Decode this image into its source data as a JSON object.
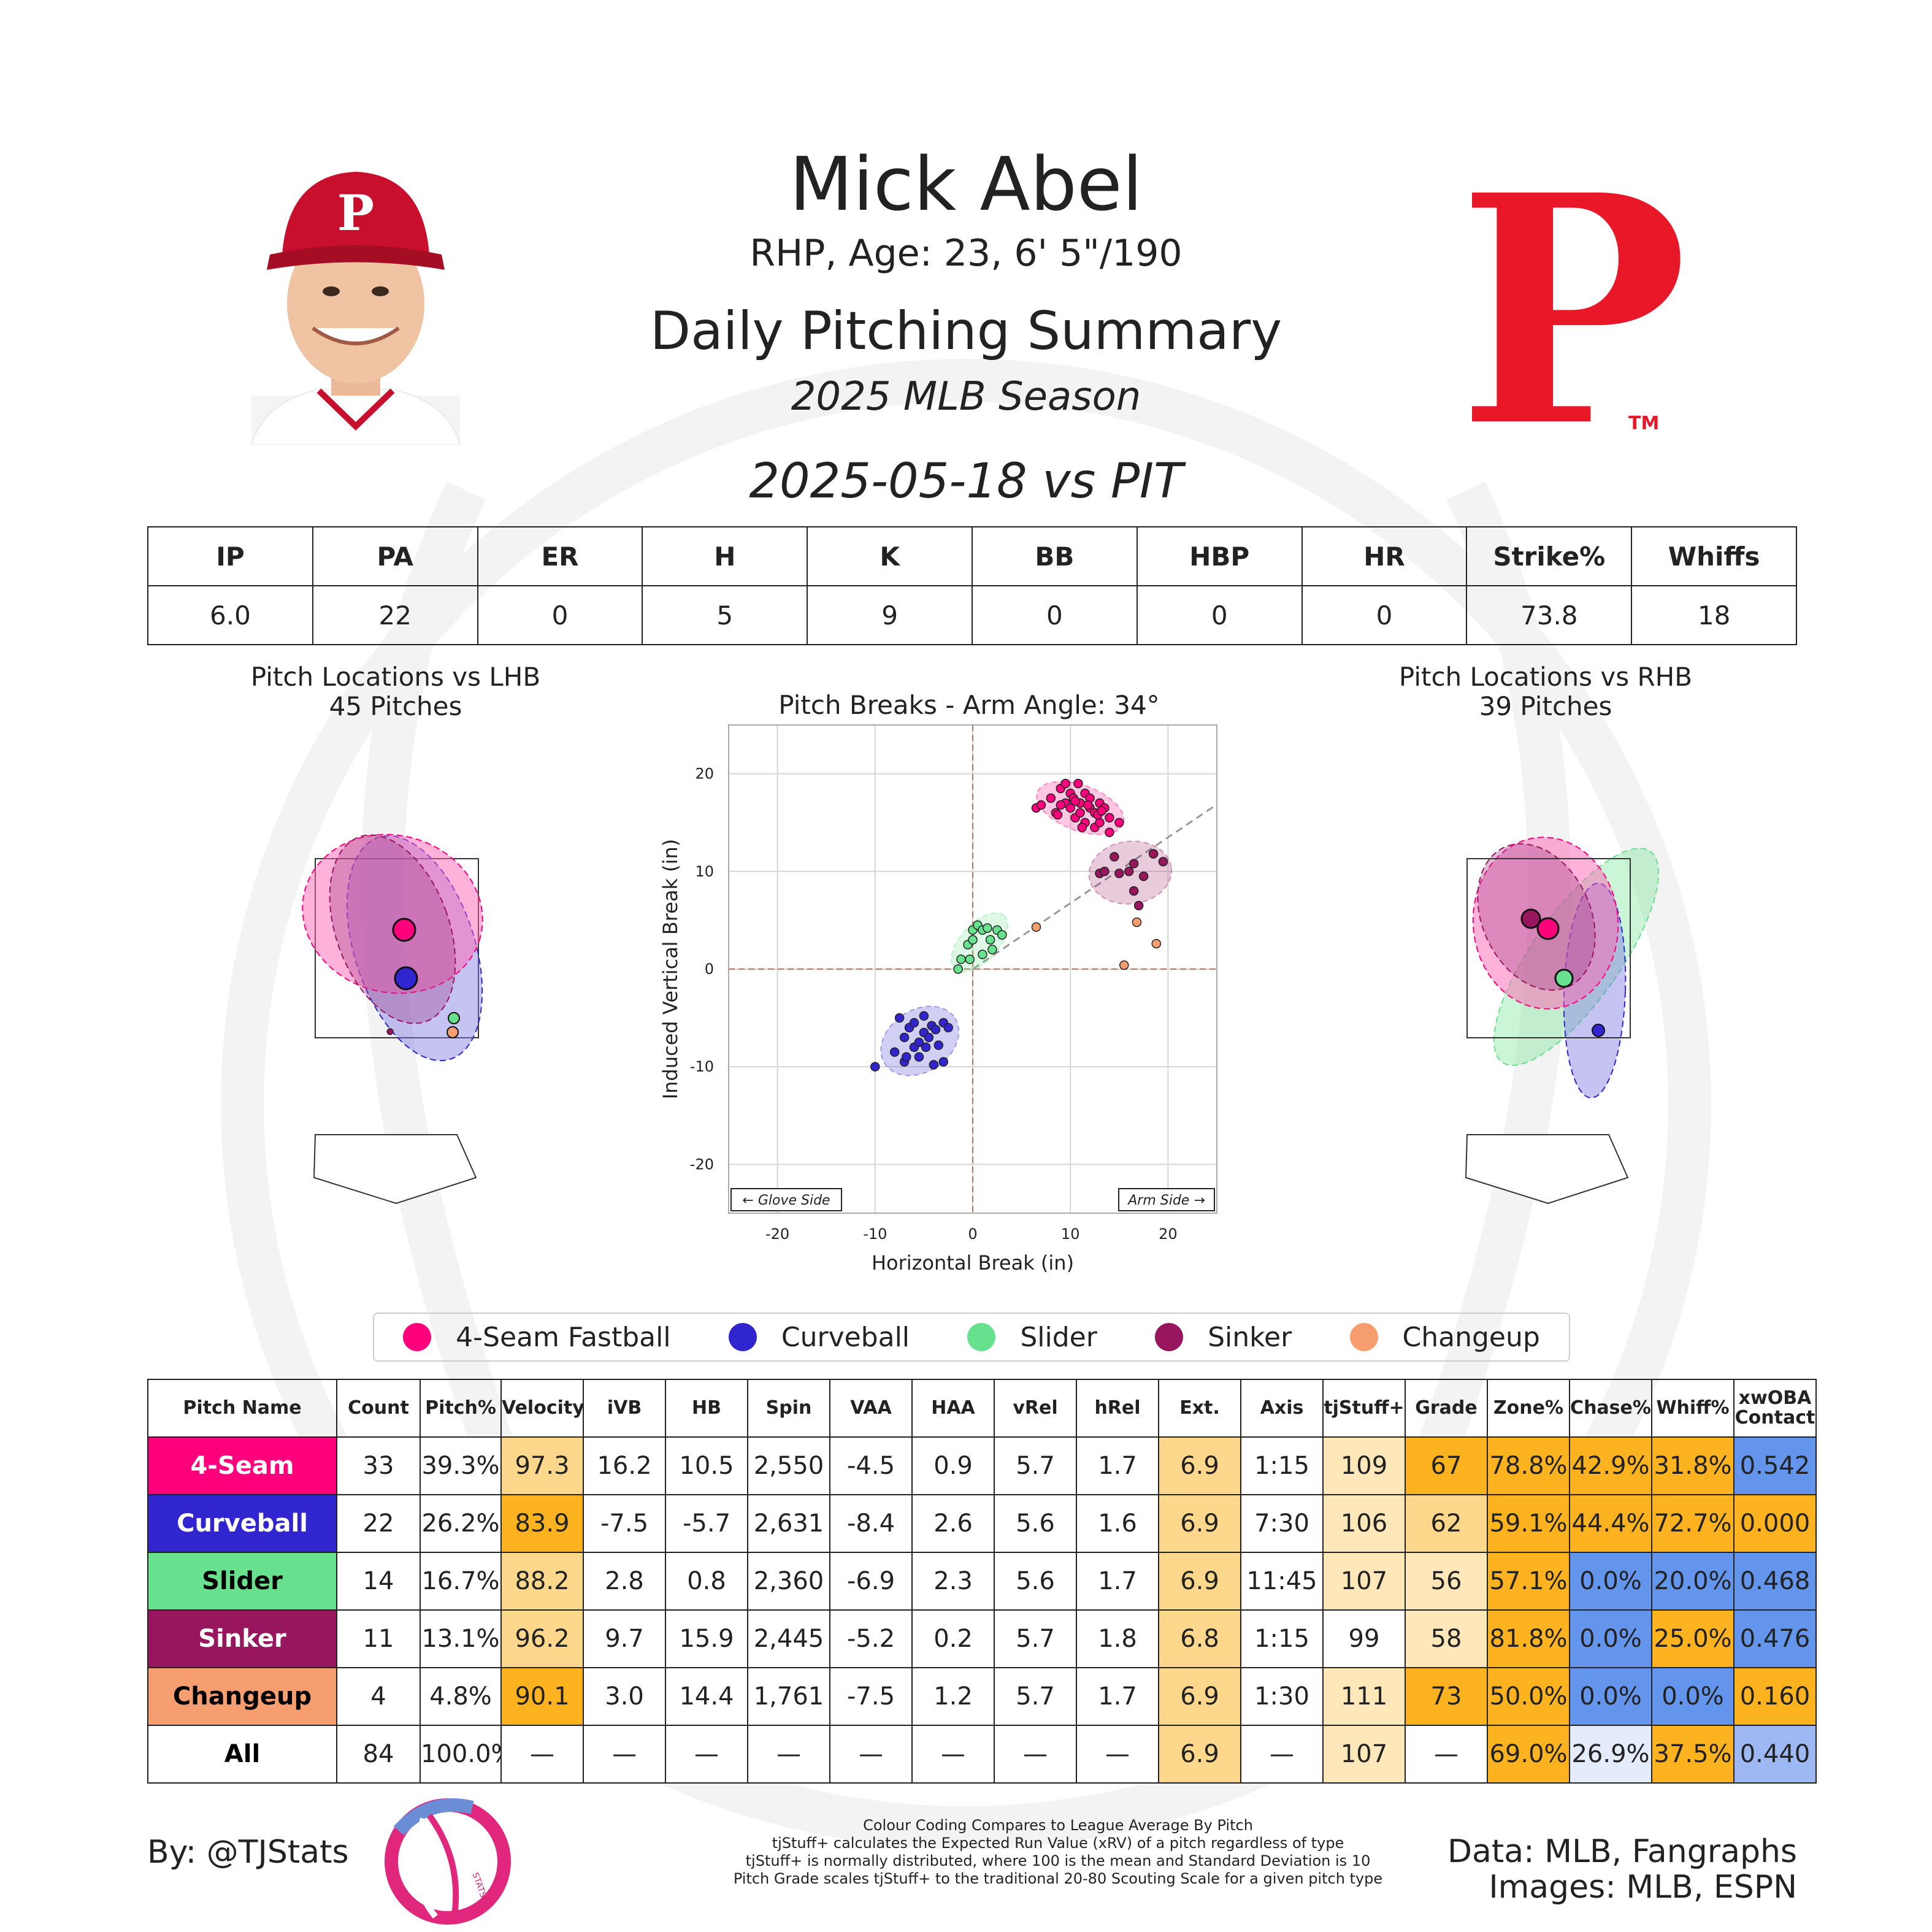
{
  "header": {
    "name": "Mick Abel",
    "bio": "RHP, Age: 23, 6' 5\"/190",
    "title": "Daily Pitching Summary",
    "season": "2025 MLB Season",
    "game": "2025-05-18 vs PIT",
    "logo_letter": "P",
    "logo_tm": "TM",
    "cap_letter": "P"
  },
  "summary": {
    "headers": [
      "IP",
      "PA",
      "ER",
      "H",
      "K",
      "BB",
      "HBP",
      "HR",
      "Strike%",
      "Whiffs"
    ],
    "values": [
      "6.0",
      "22",
      "0",
      "5",
      "9",
      "0",
      "0",
      "0",
      "73.8",
      "18"
    ]
  },
  "colors": {
    "4-Seam Fastball": "#FF007D",
    "Curveball": "#3025CE",
    "Slider": "#67E18D",
    "Sinker": "#98165D",
    "Changeup": "#F79E70",
    "high": "#FCB31F",
    "mid_high": "#FDD78B",
    "light_high": "#FEE7B9",
    "low": "#6495ED",
    "light_low": "#E4EBFB",
    "mid_low": "#9DB8F3",
    "neutral": "#FFFFFF"
  },
  "lhb": {
    "title": "Pitch Locations vs LHB",
    "count": "45 Pitches"
  },
  "rhb": {
    "title": "Pitch Locations vs RHB",
    "count": "39 Pitches"
  },
  "chart_data": {
    "type": "scatter",
    "title": "Pitch Breaks - Arm Angle: 34°",
    "xlabel": "Horizontal Break (in)",
    "ylabel": "Induced Vertical Break (in)",
    "xlim": [
      -25,
      25
    ],
    "ylim": [
      -25,
      25
    ],
    "xticks": [
      -20,
      -10,
      0,
      10,
      20
    ],
    "yticks": [
      -20,
      -10,
      0,
      10,
      20
    ],
    "grid": true,
    "arm_angle_deg": 34,
    "glove_label": "← Glove Side",
    "arm_label": "Arm Side →",
    "series": [
      {
        "name": "4-Seam Fastball",
        "color_key": "4-Seam Fastball",
        "points": [
          [
            6.5,
            16.5
          ],
          [
            7,
            16.8
          ],
          [
            8,
            17.5
          ],
          [
            8.5,
            16
          ],
          [
            9,
            18.5
          ],
          [
            9.5,
            17
          ],
          [
            9.5,
            19
          ],
          [
            10,
            16.5
          ],
          [
            10,
            18
          ],
          [
            10.3,
            17.5
          ],
          [
            10.5,
            15.5
          ],
          [
            10.8,
            19
          ],
          [
            11,
            17
          ],
          [
            11,
            16
          ],
          [
            11.5,
            18
          ],
          [
            11.5,
            15
          ],
          [
            12,
            16.5
          ],
          [
            12,
            17.5
          ],
          [
            12.5,
            14.5
          ],
          [
            12.5,
            16
          ],
          [
            13,
            17
          ],
          [
            13,
            15
          ],
          [
            13.5,
            16.5
          ],
          [
            14,
            14
          ],
          [
            14,
            15.5
          ],
          [
            9,
            16.8
          ],
          [
            10.5,
            17.2
          ],
          [
            11.8,
            16.8
          ],
          [
            12.8,
            15.8
          ],
          [
            8.7,
            15.8
          ],
          [
            13.2,
            16.2
          ],
          [
            11.2,
            14.5
          ],
          [
            15,
            15
          ]
        ]
      },
      {
        "name": "Curveball",
        "color_key": "Curveball",
        "points": [
          [
            -10,
            -10
          ],
          [
            -8,
            -8.5
          ],
          [
            -7.5,
            -5
          ],
          [
            -7,
            -9.5
          ],
          [
            -7,
            -7
          ],
          [
            -6.5,
            -6
          ],
          [
            -6,
            -8
          ],
          [
            -6,
            -5.5
          ],
          [
            -5.5,
            -7.5
          ],
          [
            -5.5,
            -9
          ],
          [
            -5,
            -6.5
          ],
          [
            -5,
            -4.8
          ],
          [
            -4.8,
            -8
          ],
          [
            -4.5,
            -7
          ],
          [
            -4.2,
            -5.8
          ],
          [
            -4,
            -9.8
          ],
          [
            -3.8,
            -6.2
          ],
          [
            -3.5,
            -7.8
          ],
          [
            -3,
            -9.5
          ],
          [
            -3,
            -5.5
          ],
          [
            -2.5,
            -6
          ],
          [
            -6.8,
            -9
          ]
        ]
      },
      {
        "name": "Slider",
        "color_key": "Slider",
        "points": [
          [
            -1.5,
            0
          ],
          [
            -1.2,
            1
          ],
          [
            -0.5,
            2.5
          ],
          [
            -0.3,
            1
          ],
          [
            0,
            4
          ],
          [
            0,
            3
          ],
          [
            0.5,
            4.5
          ],
          [
            1,
            4
          ],
          [
            1,
            1.5
          ],
          [
            1.5,
            4.2
          ],
          [
            1.8,
            3
          ],
          [
            2,
            2
          ],
          [
            2.5,
            4
          ],
          [
            3,
            3.5
          ]
        ]
      },
      {
        "name": "Sinker",
        "color_key": "Sinker",
        "points": [
          [
            13,
            9.8
          ],
          [
            13.5,
            10
          ],
          [
            14.5,
            11.5
          ],
          [
            15,
            9.8
          ],
          [
            16,
            10
          ],
          [
            16.5,
            10.8
          ],
          [
            16.5,
            8
          ],
          [
            17,
            6.5
          ],
          [
            17.5,
            9.5
          ],
          [
            18.5,
            11.8
          ],
          [
            19.5,
            11
          ]
        ]
      },
      {
        "name": "Changeup",
        "color_key": "Changeup",
        "points": [
          [
            6.5,
            4.3
          ],
          [
            15.5,
            0.4
          ],
          [
            16.8,
            4.8
          ],
          [
            18.8,
            2.6
          ]
        ]
      }
    ]
  },
  "legend": [
    {
      "label": "4-Seam Fastball",
      "color_key": "4-Seam Fastball"
    },
    {
      "label": "Curveball",
      "color_key": "Curveball"
    },
    {
      "label": "Slider",
      "color_key": "Slider"
    },
    {
      "label": "Sinker",
      "color_key": "Sinker"
    },
    {
      "label": "Changeup",
      "color_key": "Changeup"
    }
  ],
  "pitch_table": {
    "headers": [
      "Pitch Name",
      "Count",
      "Pitch%",
      "Velocity",
      "iVB",
      "HB",
      "Spin",
      "VAA",
      "HAA",
      "vRel",
      "hRel",
      "Ext.",
      "Axis",
      "tjStuff+",
      "Grade",
      "Zone%",
      "Chase%",
      "Whiff%",
      "xwOBA Contact"
    ],
    "rows": [
      {
        "name": "4-Seam",
        "name_color": "4-Seam Fastball",
        "name_text": "#ffffff",
        "cells": [
          "33",
          "39.3%",
          "97.3",
          "16.2",
          "10.5",
          "2,550",
          "-4.5",
          "0.9",
          "5.7",
          "1.7",
          "6.9",
          "1:15",
          "109",
          "67",
          "78.8%",
          "42.9%",
          "31.8%",
          "0.542"
        ],
        "shade": [
          "neutral",
          "neutral",
          "mid_high",
          "neutral",
          "neutral",
          "neutral",
          "neutral",
          "neutral",
          "neutral",
          "neutral",
          "mid_high",
          "neutral",
          "light_high",
          "high",
          "high",
          "high",
          "high",
          "low"
        ]
      },
      {
        "name": "Curveball",
        "name_color": "Curveball",
        "name_text": "#ffffff",
        "cells": [
          "22",
          "26.2%",
          "83.9",
          "-7.5",
          "-5.7",
          "2,631",
          "-8.4",
          "2.6",
          "5.6",
          "1.6",
          "6.9",
          "7:30",
          "106",
          "62",
          "59.1%",
          "44.4%",
          "72.7%",
          "0.000"
        ],
        "shade": [
          "neutral",
          "neutral",
          "high",
          "neutral",
          "neutral",
          "neutral",
          "neutral",
          "neutral",
          "neutral",
          "neutral",
          "mid_high",
          "neutral",
          "light_high",
          "mid_high",
          "high",
          "high",
          "high",
          "high"
        ]
      },
      {
        "name": "Slider",
        "name_color": "Slider",
        "name_text": "#000000",
        "cells": [
          "14",
          "16.7%",
          "88.2",
          "2.8",
          "0.8",
          "2,360",
          "-6.9",
          "2.3",
          "5.6",
          "1.7",
          "6.9",
          "11:45",
          "107",
          "56",
          "57.1%",
          "0.0%",
          "20.0%",
          "0.468"
        ],
        "shade": [
          "neutral",
          "neutral",
          "mid_high",
          "neutral",
          "neutral",
          "neutral",
          "neutral",
          "neutral",
          "neutral",
          "neutral",
          "mid_high",
          "neutral",
          "light_high",
          "light_high",
          "high",
          "low",
          "low",
          "low"
        ]
      },
      {
        "name": "Sinker",
        "name_color": "Sinker",
        "name_text": "#ffffff",
        "cells": [
          "11",
          "13.1%",
          "96.2",
          "9.7",
          "15.9",
          "2,445",
          "-5.2",
          "0.2",
          "5.7",
          "1.8",
          "6.8",
          "1:15",
          "99",
          "58",
          "81.8%",
          "0.0%",
          "25.0%",
          "0.476"
        ],
        "shade": [
          "neutral",
          "neutral",
          "mid_high",
          "neutral",
          "neutral",
          "neutral",
          "neutral",
          "neutral",
          "neutral",
          "neutral",
          "mid_high",
          "neutral",
          "neutral",
          "light_high",
          "high",
          "low",
          "high",
          "low"
        ]
      },
      {
        "name": "Changeup",
        "name_color": "Changeup",
        "name_text": "#000000",
        "cells": [
          "4",
          "4.8%",
          "90.1",
          "3.0",
          "14.4",
          "1,761",
          "-7.5",
          "1.2",
          "5.7",
          "1.7",
          "6.9",
          "1:30",
          "111",
          "73",
          "50.0%",
          "0.0%",
          "0.0%",
          "0.160"
        ],
        "shade": [
          "neutral",
          "neutral",
          "high",
          "neutral",
          "neutral",
          "neutral",
          "neutral",
          "neutral",
          "neutral",
          "neutral",
          "mid_high",
          "neutral",
          "light_high",
          "high",
          "high",
          "low",
          "low",
          "high"
        ]
      },
      {
        "name": "All",
        "name_color": "neutral",
        "name_text": "#000000",
        "cells": [
          "84",
          "100.0%",
          "—",
          "—",
          "—",
          "—",
          "—",
          "—",
          "—",
          "—",
          "6.9",
          "—",
          "107",
          "—",
          "69.0%",
          "26.9%",
          "37.5%",
          "0.440"
        ],
        "shade": [
          "neutral",
          "neutral",
          "neutral",
          "neutral",
          "neutral",
          "neutral",
          "neutral",
          "neutral",
          "neutral",
          "neutral",
          "mid_high",
          "neutral",
          "light_high",
          "neutral",
          "high",
          "light_low",
          "high",
          "mid_low"
        ]
      }
    ]
  },
  "footer": {
    "byline": "By: @TJStats",
    "logo_text": "STATS",
    "notes": [
      "Colour Coding Compares to League Average By Pitch",
      "tjStuff+ calculates the Expected Run Value (xRV) of a pitch regardless of type",
      "tjStuff+ is normally distributed, where 100 is the mean and Standard Deviation is 10",
      "Pitch Grade scales tjStuff+ to the traditional 20-80 Scouting Scale for a given pitch type"
    ],
    "credit_1": "Data: MLB, Fangraphs",
    "credit_2": "Images: MLB, ESPN"
  }
}
